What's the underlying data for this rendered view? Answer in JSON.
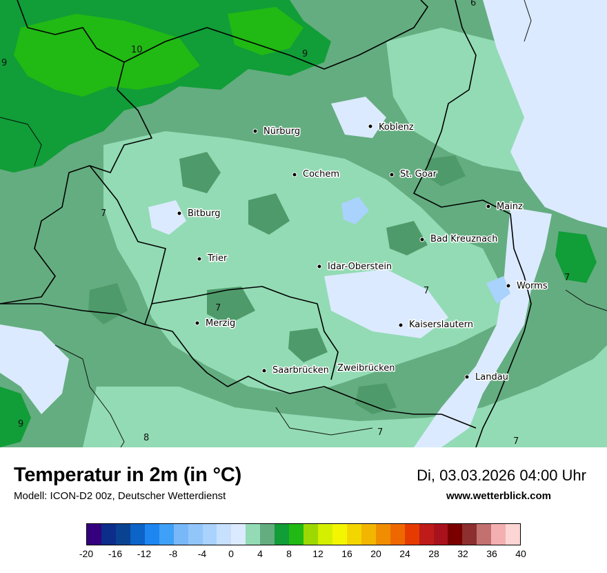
{
  "title": "Temperatur in 2m (in °C)",
  "model": "Modell: ICON-D2 00z, Deutscher Wetterdienst",
  "datetime": "Di, 03.03.2026 04:00 Uhr",
  "website": "www.wetterblick.com",
  "legend": {
    "ticks": [
      "-20",
      "-16",
      "-12",
      "-8",
      "-4",
      "0",
      "4",
      "8",
      "12",
      "16",
      "20",
      "24",
      "28",
      "32",
      "36",
      "40"
    ],
    "colors": [
      "#34007e",
      "#0c2d8a",
      "#0a4292",
      "#0c63c8",
      "#1e86f0",
      "#3fa0f7",
      "#78b8f9",
      "#92c6fb",
      "#a9d2fd",
      "#c6e0fd",
      "#dbeafe",
      "#93dbb4",
      "#64ad80",
      "#119d38",
      "#21b914",
      "#9dd802",
      "#d4ef00",
      "#f3f600",
      "#f3d600",
      "#f2b600",
      "#f08d00",
      "#ee6800",
      "#e63b00",
      "#bf1b1b",
      "#a8121c",
      "#7a0000",
      "#8d2f2f",
      "#c27070",
      "#f4b0b0",
      "#fed5d5"
    ]
  },
  "cities": [
    {
      "name": "Nürburg"
    },
    {
      "name": "Koblenz"
    },
    {
      "name": "Cochem"
    },
    {
      "name": "St. Goar"
    },
    {
      "name": "Mainz"
    },
    {
      "name": "Bitburg"
    },
    {
      "name": "Bad Kreuznach"
    },
    {
      "name": "Trier"
    },
    {
      "name": "Idar-Oberstein"
    },
    {
      "name": "Worms"
    },
    {
      "name": "Merzig"
    },
    {
      "name": "Kaiserslautern"
    },
    {
      "name": "Saarbrücken"
    },
    {
      "name": "Zweibrücken"
    },
    {
      "name": "Landau"
    }
  ],
  "isotherm_labels": [
    "6",
    "9",
    "10",
    "9",
    "7",
    "7",
    "7",
    "7",
    "9",
    "8",
    "7",
    "7"
  ]
}
